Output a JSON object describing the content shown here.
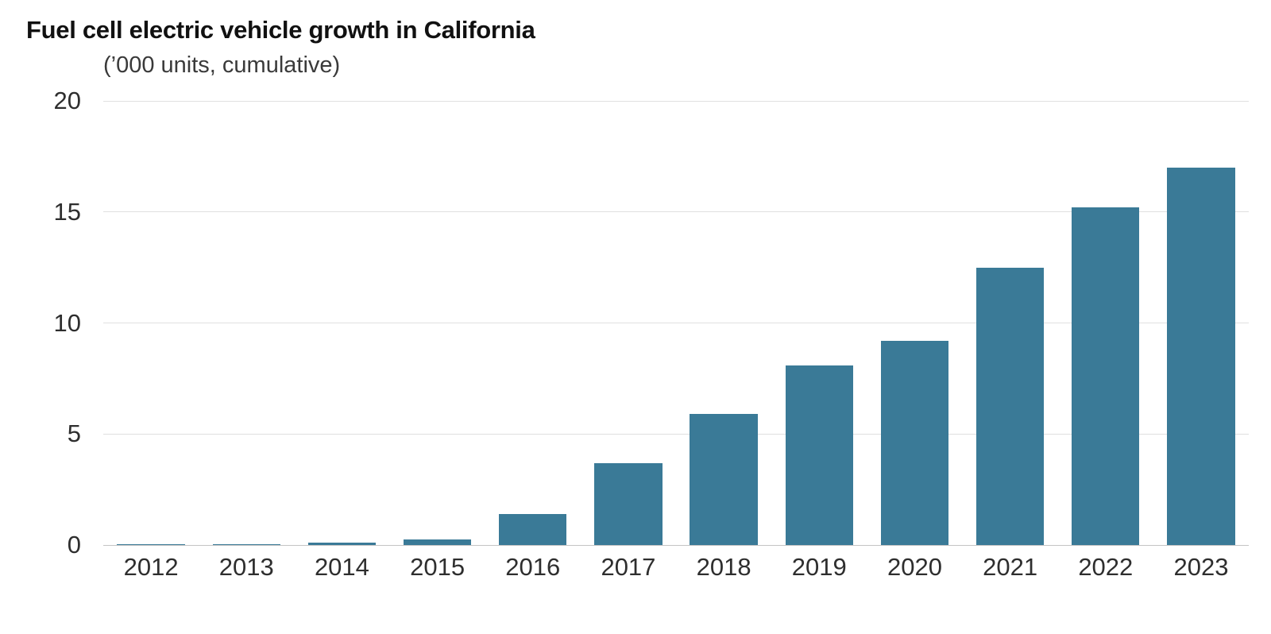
{
  "header": {
    "title": "Fuel cell electric vehicle growth in California",
    "subtitle": "(’000 units, cumulative)"
  },
  "chart_data": {
    "type": "bar",
    "title": "Fuel cell electric vehicle growth in California",
    "subtitle": "(’000 units, cumulative)",
    "categories": [
      "2012",
      "2013",
      "2014",
      "2015",
      "2016",
      "2017",
      "2018",
      "2019",
      "2020",
      "2021",
      "2022",
      "2023"
    ],
    "values": [
      0.02,
      0.05,
      0.1,
      0.25,
      1.4,
      3.7,
      5.9,
      8.1,
      9.2,
      12.5,
      15.2,
      17.0
    ],
    "xlabel": "",
    "ylabel": "’000 units, cumulative",
    "ylim": [
      0,
      20
    ],
    "yticks": [
      0,
      5,
      10,
      15,
      20
    ],
    "grid": "horizontal",
    "legend": "none",
    "colors": {
      "bar": "#3a7a97",
      "gridline": "#e0e0e0",
      "zero_line": "#c4c4c4",
      "tick_label": "#2e2e2e",
      "title": "#111111",
      "subtitle": "#3a3a3a",
      "background": "#ffffff"
    }
  }
}
